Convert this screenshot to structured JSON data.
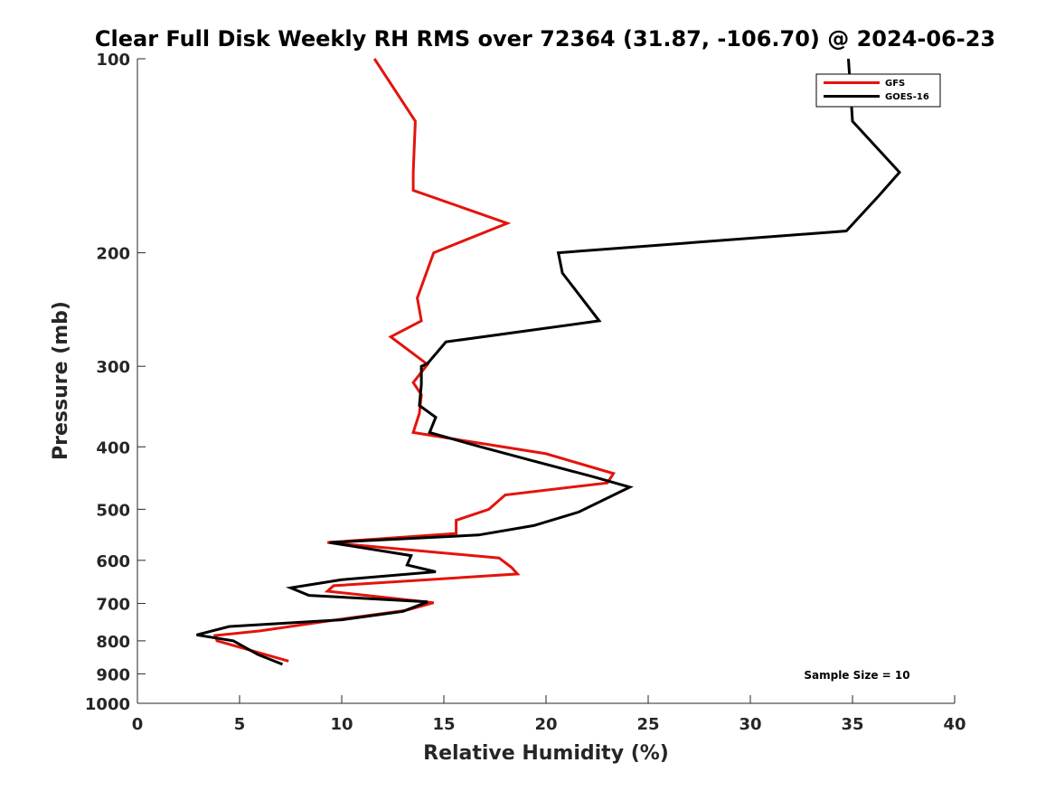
{
  "chart_data": {
    "type": "line",
    "title": "Clear Full Disk Weekly RH RMS over 72364 (31.87, -106.70) @ 2024-06-23",
    "xlabel": "Relative Humidity (%)",
    "ylabel": "Pressure (mb)",
    "xlim": [
      0,
      40
    ],
    "ylim": [
      100,
      1000
    ],
    "y_scale": "log",
    "y_reversed": true,
    "x_ticks": [
      "0",
      "5",
      "10",
      "15",
      "20",
      "25",
      "30",
      "35",
      "40"
    ],
    "y_ticks": [
      "100",
      "200",
      "300",
      "400",
      "500",
      "600",
      "700",
      "800",
      "900",
      "1000"
    ],
    "grid": false,
    "legend_position": "top-right",
    "annotation": "Sample Size = 10",
    "series": [
      {
        "name": "GFS",
        "color": "#e3140c",
        "points": [
          [
            11.6,
            100
          ],
          [
            13.6,
            125
          ],
          [
            13.5,
            150
          ],
          [
            13.5,
            160
          ],
          [
            18.1,
            180
          ],
          [
            14.5,
            200
          ],
          [
            13.7,
            235
          ],
          [
            13.9,
            255
          ],
          [
            12.4,
            270
          ],
          [
            14.2,
            298
          ],
          [
            13.5,
            318
          ],
          [
            13.9,
            332
          ],
          [
            13.8,
            355
          ],
          [
            13.5,
            380
          ],
          [
            16.8,
            395
          ],
          [
            20.0,
            410
          ],
          [
            23.3,
            440
          ],
          [
            23.0,
            455
          ],
          [
            18.0,
            475
          ],
          [
            17.2,
            500
          ],
          [
            15.6,
            520
          ],
          [
            15.6,
            545
          ],
          [
            9.3,
            563
          ],
          [
            17.7,
            595
          ],
          [
            18.3,
            615
          ],
          [
            18.6,
            630
          ],
          [
            9.6,
            657
          ],
          [
            9.3,
            670
          ],
          [
            14.5,
            698
          ],
          [
            13.1,
            718
          ],
          [
            10.0,
            740
          ],
          [
            6.0,
            772
          ],
          [
            3.8,
            785
          ],
          [
            3.9,
            800
          ],
          [
            7.4,
            860
          ]
        ]
      },
      {
        "name": "GOES-16",
        "color": "#000000",
        "points": [
          [
            34.8,
            100
          ],
          [
            35.0,
            125
          ],
          [
            37.3,
            150
          ],
          [
            36.3,
            163
          ],
          [
            34.7,
            185
          ],
          [
            20.6,
            200
          ],
          [
            20.8,
            215
          ],
          [
            22.6,
            255
          ],
          [
            15.1,
            275
          ],
          [
            14.2,
            297
          ],
          [
            13.9,
            300
          ],
          [
            13.9,
            320
          ],
          [
            13.8,
            345
          ],
          [
            14.6,
            360
          ],
          [
            14.3,
            380
          ],
          [
            16.8,
            400
          ],
          [
            19.3,
            420
          ],
          [
            22.3,
            445
          ],
          [
            24.1,
            462
          ],
          [
            21.6,
            505
          ],
          [
            19.4,
            530
          ],
          [
            16.7,
            548
          ],
          [
            9.4,
            563
          ],
          [
            13.4,
            590
          ],
          [
            13.2,
            610
          ],
          [
            14.6,
            625
          ],
          [
            10.0,
            643
          ],
          [
            7.5,
            662
          ],
          [
            8.4,
            680
          ],
          [
            14.2,
            696
          ],
          [
            13.0,
            720
          ],
          [
            10.0,
            742
          ],
          [
            4.5,
            760
          ],
          [
            2.9,
            783
          ],
          [
            4.7,
            800
          ],
          [
            5.9,
            840
          ],
          [
            7.1,
            870
          ]
        ]
      }
    ]
  }
}
